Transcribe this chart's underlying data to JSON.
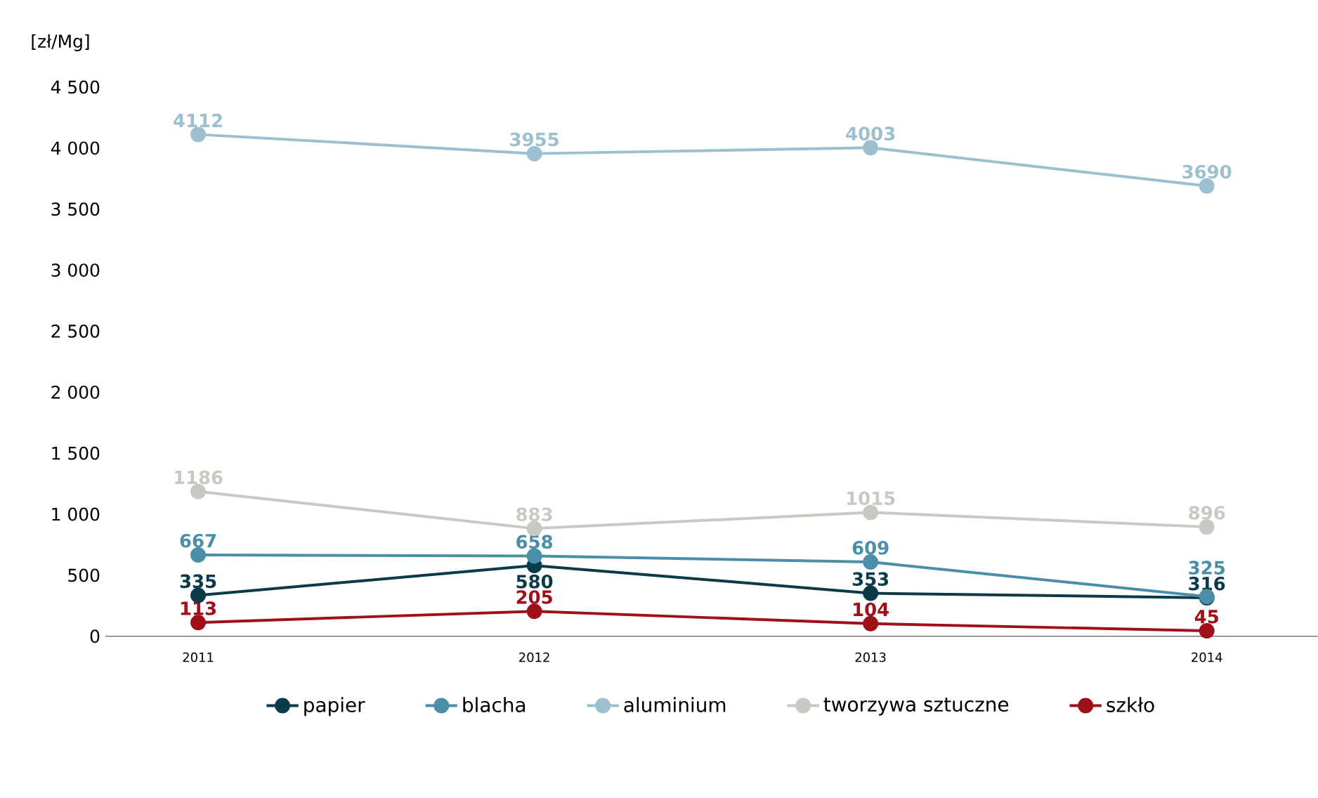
{
  "chart_data": {
    "type": "line",
    "ylabel": "[zł/Mg]",
    "categories": [
      "2011",
      "2012",
      "2013",
      "2014"
    ],
    "series": [
      {
        "name": "papier",
        "color": "#0b3a4a",
        "values": [
          335,
          580,
          353,
          316
        ]
      },
      {
        "name": "blacha",
        "color": "#4a8fa8",
        "values": [
          667,
          658,
          609,
          325
        ]
      },
      {
        "name": "aluminium",
        "color": "#9cc0cf",
        "values": [
          4112,
          3955,
          4003,
          3690
        ]
      },
      {
        "name": "tworzywa sztuczne",
        "color": "#c9c8c2",
        "values": [
          1186,
          883,
          1015,
          896
        ]
      },
      {
        "name": "szkło",
        "color": "#a0101a",
        "values": [
          113,
          205,
          104,
          45
        ]
      }
    ],
    "ylim": [
      0,
      4500
    ],
    "yticks": [
      0,
      500,
      {
        "value": 1000,
        "label": "1 000"
      },
      {
        "value": 1500,
        "label": "1 500"
      },
      {
        "value": 2000,
        "label": "2 000"
      },
      {
        "value": 2500,
        "label": "2 500"
      },
      {
        "value": 3000,
        "label": "3 000"
      },
      {
        "value": 3500,
        "label": "3 500"
      },
      {
        "value": 4000,
        "label": "4 000"
      },
      {
        "value": 4500,
        "label": "4 500"
      }
    ],
    "grid": false,
    "legend": "bottom",
    "marker": "circle",
    "line_style": "solid",
    "data_labels": true
  }
}
